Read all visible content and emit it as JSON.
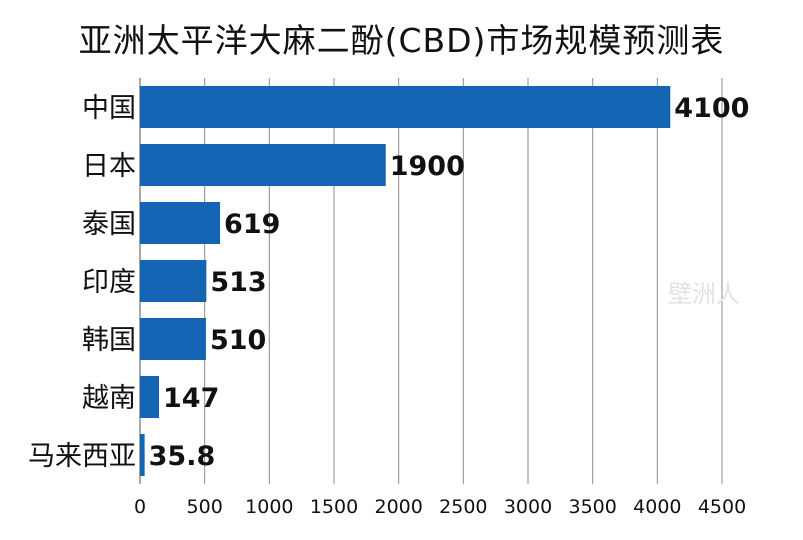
{
  "chart_data": {
    "type": "bar",
    "orientation": "horizontal",
    "title": "亚洲太平洋大麻二酚(CBD)市场规模预测表",
    "categories": [
      "中国",
      "日本",
      "泰国",
      "印度",
      "韩国",
      "越南",
      "马来西亚"
    ],
    "values": [
      4100,
      1900,
      619,
      513,
      510,
      147,
      35.8
    ],
    "value_labels": [
      "4100",
      "1900",
      "619",
      "513",
      "510",
      "147",
      "35.8"
    ],
    "xlim": [
      0,
      4500
    ],
    "xticks": [
      0,
      500,
      1000,
      1500,
      2000,
      2500,
      3000,
      3500,
      4000,
      4500
    ],
    "xlabel": "",
    "ylabel": "",
    "grid": "vertical",
    "legend": "none"
  },
  "colors": {
    "bar": "#1464b4",
    "grid": "#8c8c8c",
    "text": "#111111"
  },
  "watermark": "壁洲人"
}
